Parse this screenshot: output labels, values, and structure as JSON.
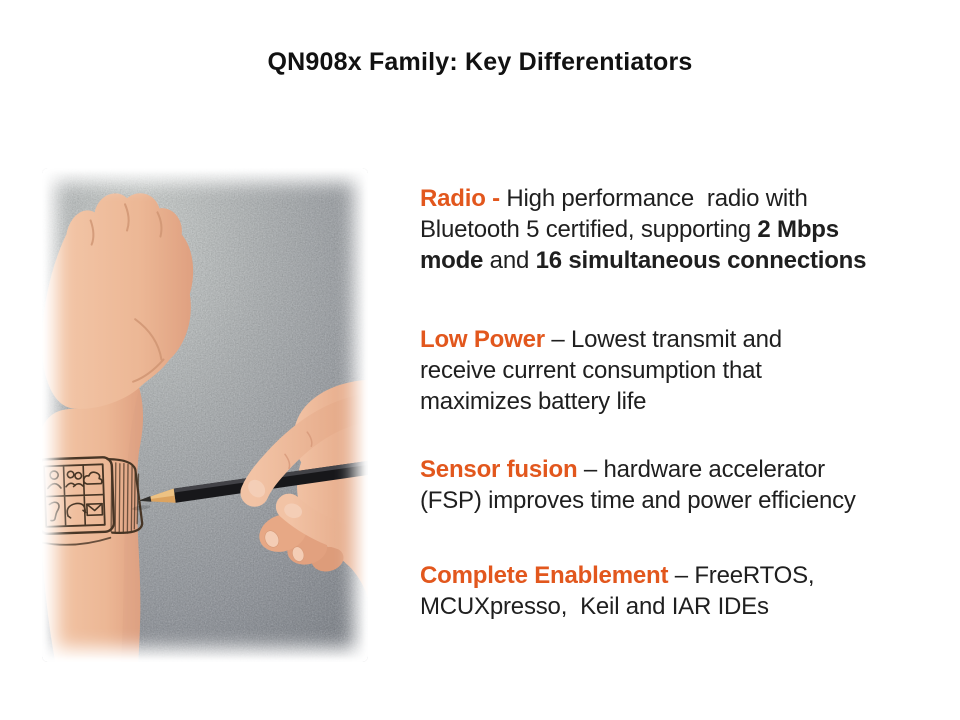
{
  "slide": {
    "title": "QN908x Family: Key Differentiators",
    "accent_color": "#E2571D",
    "text_color": "#1F1F1F",
    "photo": {
      "description": "Photo of a wrist with a smartwatch sketched on it; a hand holding a pencil draws the watch, gray textured background, white feathered edges"
    },
    "bullets": [
      {
        "lines": [
          [
            {
              "t": "Radio - ",
              "s": "heading"
            },
            {
              "t": "High performance  radio with",
              "s": "normal"
            }
          ],
          [
            {
              "t": "Bluetooth 5 certified, supporting ",
              "s": "normal"
            },
            {
              "t": "2 Mbps",
              "s": "bold"
            }
          ],
          [
            {
              "t": "mode",
              "s": "bold"
            },
            {
              "t": " and ",
              "s": "normal"
            },
            {
              "t": "16 simultaneous connections",
              "s": "bold"
            }
          ]
        ]
      },
      {
        "lines": [
          [
            {
              "t": "Low Power",
              "s": "heading"
            },
            {
              "t": " – Lowest transmit and",
              "s": "normal"
            }
          ],
          [
            {
              "t": "receive current consumption that",
              "s": "normal"
            }
          ],
          [
            {
              "t": "maximizes battery life",
              "s": "normal"
            }
          ]
        ]
      },
      {
        "lines": [
          [
            {
              "t": "Sensor fusion",
              "s": "heading"
            },
            {
              "t": " – hardware accelerator",
              "s": "normal"
            }
          ],
          [
            {
              "t": "(FSP) improves time and power efficiency",
              "s": "normal"
            }
          ]
        ]
      },
      {
        "lines": [
          [
            {
              "t": "Complete Enablement",
              "s": "heading"
            },
            {
              "t": " – FreeRTOS,",
              "s": "normal"
            }
          ],
          [
            {
              "t": "MCUXpresso,  Keil and IAR IDEs",
              "s": "normal"
            }
          ]
        ]
      }
    ]
  }
}
